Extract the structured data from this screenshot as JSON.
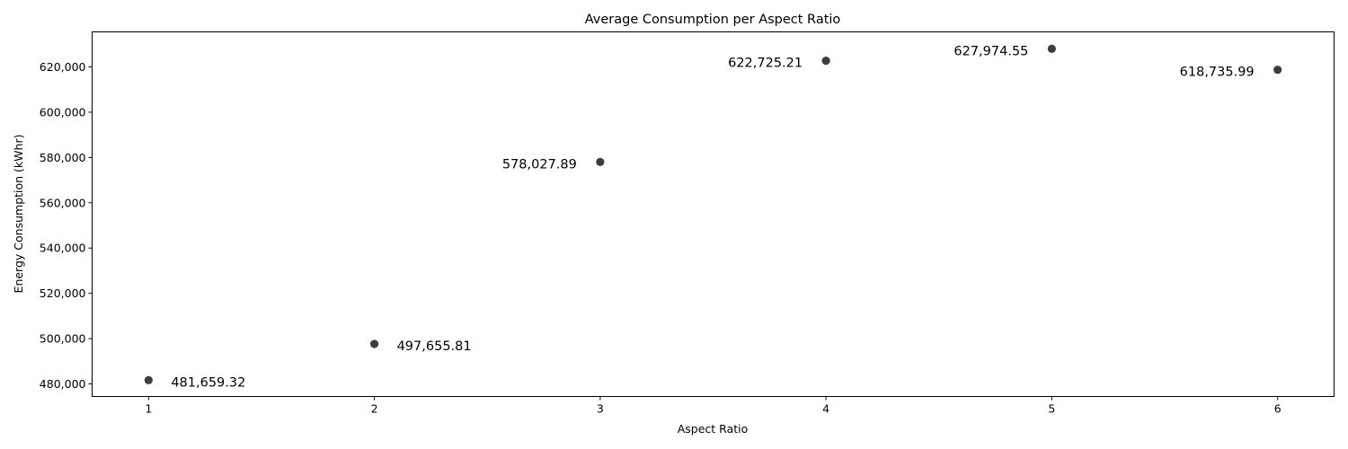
{
  "chart_data": {
    "type": "scatter",
    "title": "Average Consumption per Aspect Ratio",
    "xlabel": "Aspect Ratio",
    "ylabel": "Energy Consumption (kWhr)",
    "x": [
      1,
      2,
      3,
      4,
      5,
      6
    ],
    "y": [
      481659.32,
      497655.81,
      578027.89,
      622725.21,
      627974.55,
      618735.99
    ],
    "point_labels": [
      "481,659.32",
      "497,655.81",
      "578,027.89",
      "622,725.21",
      "627,974.55",
      "618,735.99"
    ],
    "xlim": [
      0.75,
      6.25
    ],
    "ylim": [
      474344,
      615290
    ],
    "x_ticks": [
      1,
      2,
      3,
      4,
      5,
      6
    ],
    "x_tick_labels": [
      "1",
      "2",
      "3",
      "4",
      "5",
      "6"
    ],
    "y_ticks": [
      480000,
      500000,
      520000,
      540000,
      560000,
      580000,
      600000,
      620000
    ],
    "y_tick_labels": [
      "480,000",
      "500,000",
      "520,000",
      "540,000",
      "560,000",
      "580,000",
      "600,000",
      "620,000"
    ],
    "grid": false,
    "marker_color": "#3d3d3d"
  }
}
